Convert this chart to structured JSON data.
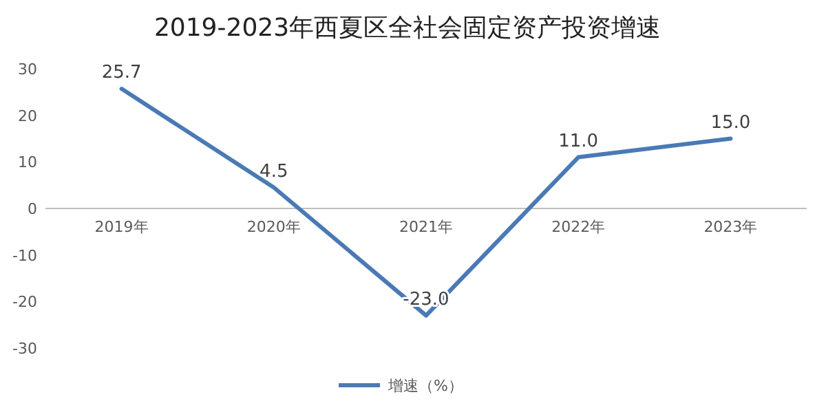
{
  "chart_data": {
    "type": "line",
    "title": "2019-2023年西夏区全社会固定资产投资增速",
    "categories": [
      "2019年",
      "2020年",
      "2021年",
      "2022年",
      "2023年"
    ],
    "series": [
      {
        "name": "增速（%）",
        "color": "#4a7ab5",
        "values": [
          25.7,
          4.5,
          -23.0,
          11.0,
          15.0
        ]
      }
    ],
    "value_labels": [
      "25.7",
      "4.5",
      "-23.0",
      "11.0",
      "15.0"
    ],
    "ylim": [
      -30,
      30
    ],
    "yticks": [
      -30,
      -20,
      -10,
      0,
      10,
      20,
      30
    ],
    "grid": false,
    "legend": "bottom",
    "marker": "none",
    "line_style": "solid"
  }
}
